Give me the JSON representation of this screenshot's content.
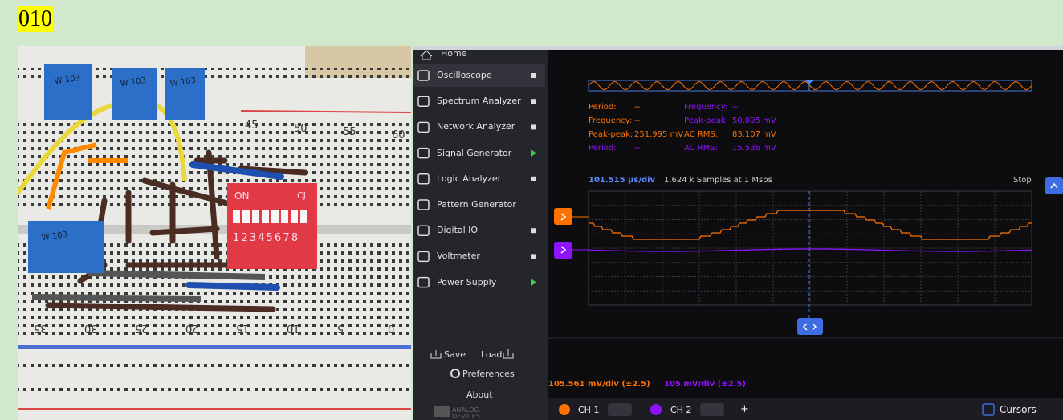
{
  "label": "010",
  "photo": {
    "numbers_top": [
      "45",
      "50",
      "55",
      "60"
    ],
    "numbers_bottom": [
      "35",
      "30",
      "25",
      "20",
      "15",
      "10",
      "5",
      "0"
    ],
    "switch_on": "ON",
    "switch_brand": "CJ",
    "switch_numbers": "1 2 3 4 5 6 7 8",
    "pot_labels": [
      "W 103",
      "W 103",
      "W 103",
      "W 103"
    ]
  },
  "sidebar": {
    "home": "Home",
    "items": [
      {
        "label": "Oscilloscope",
        "state": "stopped",
        "selected": true
      },
      {
        "label": "Spectrum Analyzer",
        "state": "stopped"
      },
      {
        "label": "Network Analyzer",
        "state": "stopped"
      },
      {
        "label": "Signal Generator",
        "state": "running"
      },
      {
        "label": "Logic Analyzer",
        "state": "stopped"
      },
      {
        "label": "Pattern Generator",
        "state": "none"
      },
      {
        "label": "Digital IO",
        "state": "stopped"
      },
      {
        "label": "Voltmeter",
        "state": "stopped"
      },
      {
        "label": "Power Supply",
        "state": "running"
      }
    ],
    "save": "Save",
    "load": "Load",
    "preferences": "Preferences",
    "about": "About",
    "logo": "ANALOG DEVICES"
  },
  "measurements": [
    [
      {
        "label": "Period:",
        "value": "--",
        "channel": 1
      },
      {
        "label": "Frequency:",
        "value": "--",
        "channel": 1
      },
      {
        "label": "Peak-peak:",
        "value": "251.995 mV",
        "channel": 1
      },
      {
        "label": "Period:",
        "value": "--",
        "channel": 2
      }
    ],
    [
      {
        "label": "Frequency:",
        "value": "--",
        "channel": 2
      },
      {
        "label": "Peak-peak:",
        "value": "50.095 mV",
        "channel": 2
      },
      {
        "label": "AC RMS:",
        "value": "83.107 mV",
        "channel": 1
      },
      {
        "label": "AC RMS:",
        "value": "15.536 mV",
        "channel": 2
      }
    ]
  ],
  "time_base": "101.515 µs/div",
  "samples": "1.624 k Samples at 1 Msps",
  "run_state": "Stop",
  "channels": [
    {
      "name": "CH 1",
      "scale": "105.561 mV/div (±2.5)",
      "color": "#ff7200"
    },
    {
      "name": "CH 2",
      "scale": "105 mV/div (±2.5)",
      "color": "#9013fe"
    }
  ],
  "add": "+",
  "cursors": "Cursors"
}
